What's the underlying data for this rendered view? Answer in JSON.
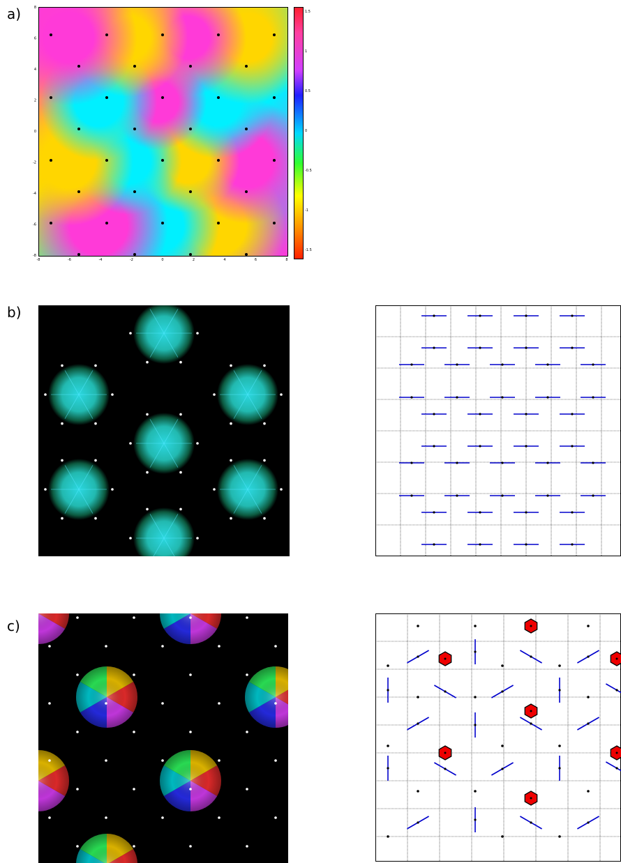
{
  "labels": {
    "a": "a)",
    "b": "b)",
    "c": "c)"
  },
  "panel_a": {
    "x_ticks": [
      "-8",
      "-6",
      "-4",
      "-2",
      "0",
      "2",
      "4",
      "6",
      "8"
    ],
    "y_ticks": [
      "8",
      "6",
      "4",
      "2",
      "0",
      "-2",
      "-4",
      "-6",
      "-8"
    ],
    "colorbar_ticks": [
      "1.5",
      "1",
      "0.5",
      "0",
      "-0.5",
      "-1",
      "-1.5"
    ]
  },
  "colors": {
    "marker_blue": "#0000cc",
    "marker_red": "#ee0000",
    "dot_white": "#ffffff",
    "dot_black": "#000000"
  }
}
